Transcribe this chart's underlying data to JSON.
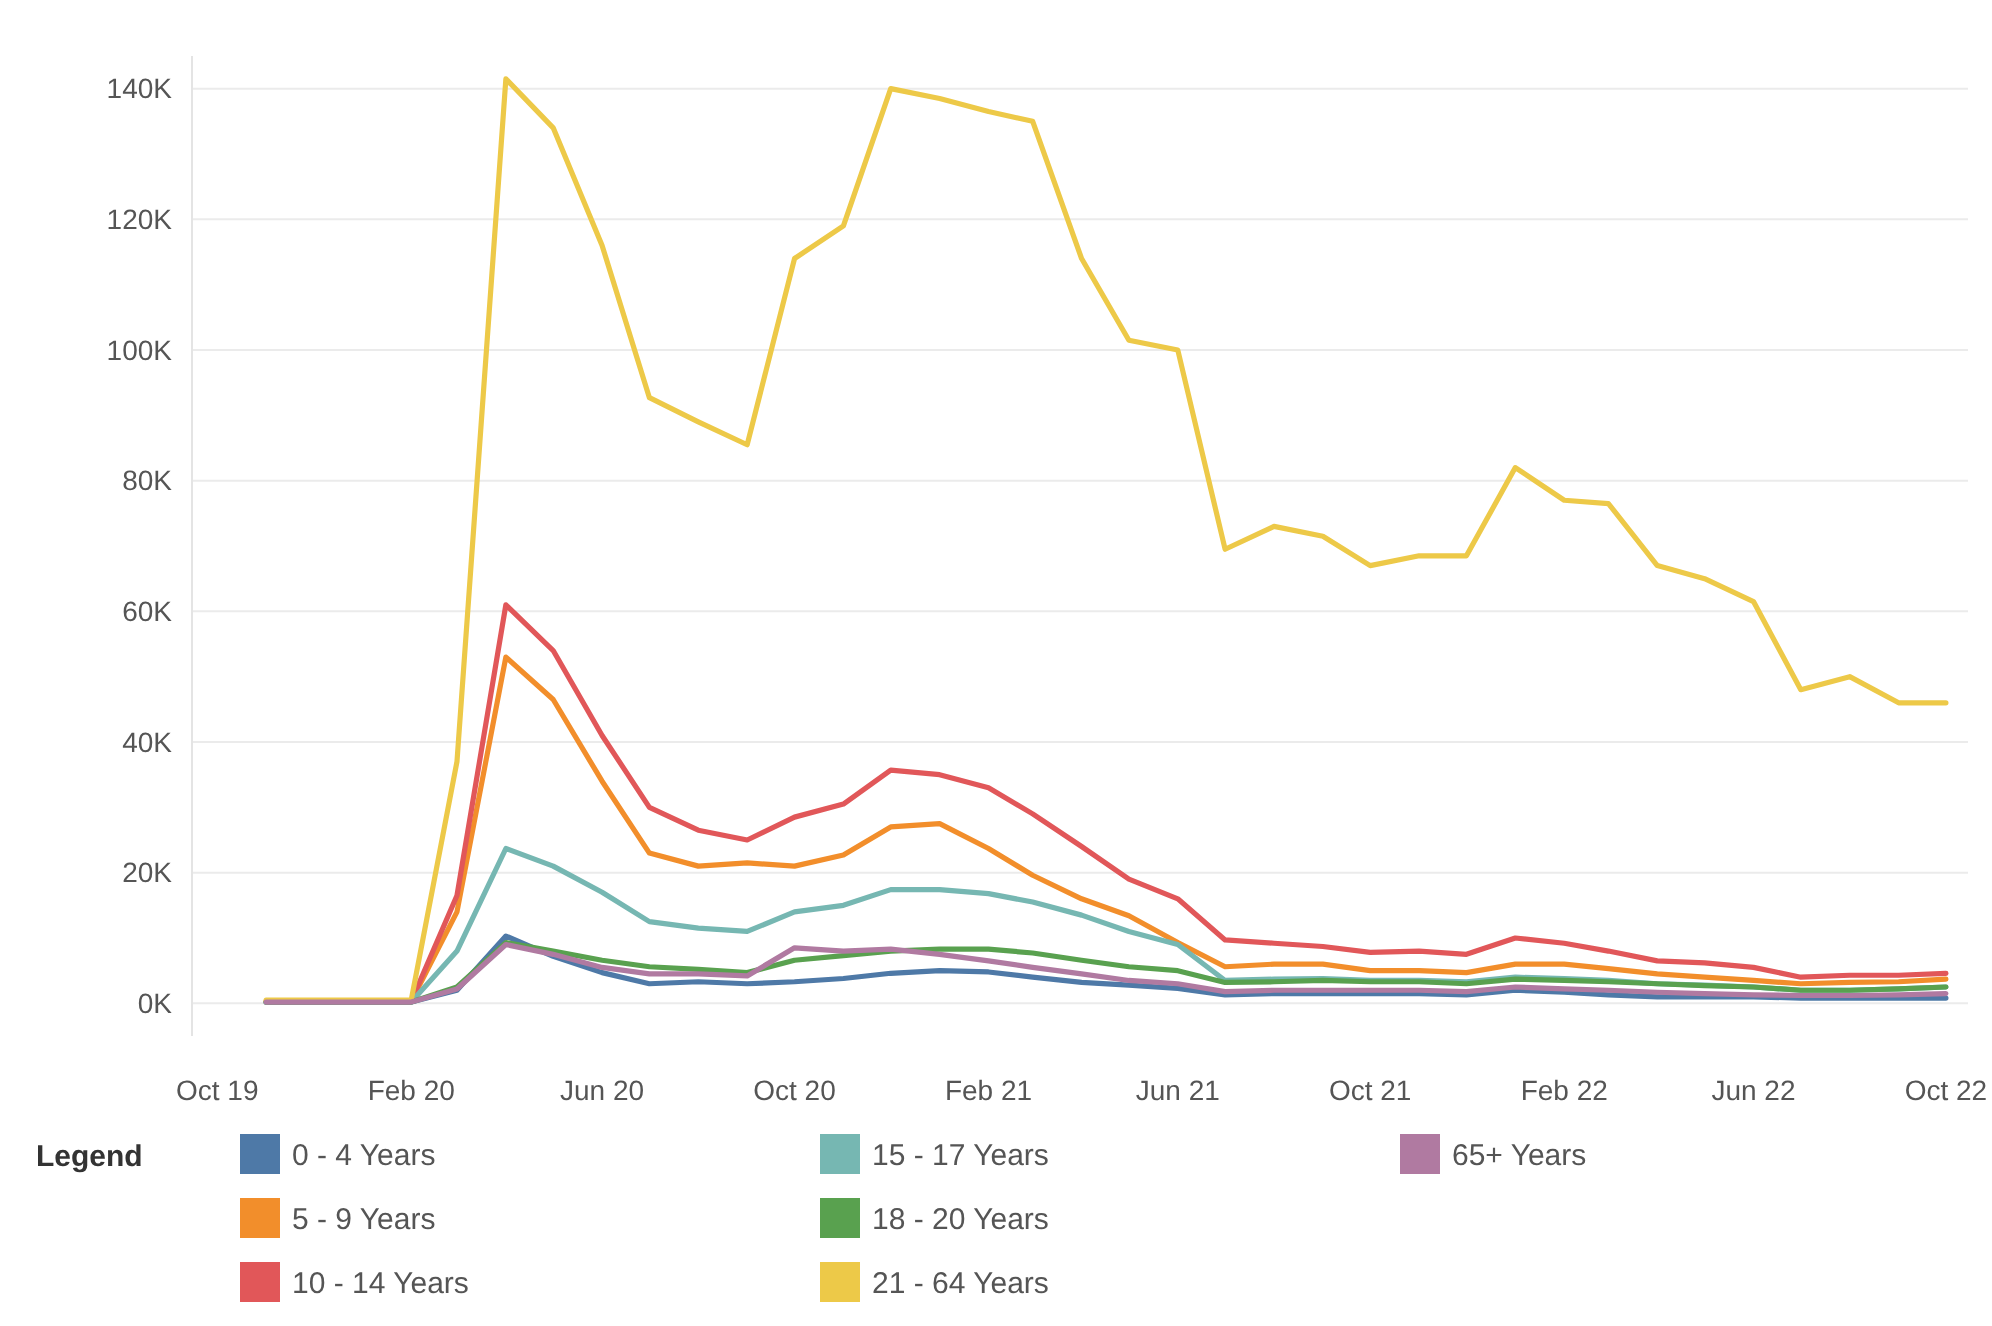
{
  "chart_data": {
    "type": "line",
    "legend_title": "Legend",
    "legend": "bottom",
    "grid": "y",
    "marker": "none",
    "line_style": "solid",
    "x": [
      "2019-11",
      "2019-12",
      "2020-01",
      "2020-02",
      "2020-03",
      "2020-04",
      "2020-05",
      "2020-06",
      "2020-07",
      "2020-08",
      "2020-09",
      "2020-10",
      "2020-11",
      "2020-12",
      "2021-01",
      "2021-02",
      "2021-03",
      "2021-04",
      "2021-05",
      "2021-06",
      "2021-07",
      "2021-08",
      "2021-09",
      "2021-10",
      "2021-11",
      "2021-12",
      "2022-01",
      "2022-02",
      "2022-03",
      "2022-04",
      "2022-05",
      "2022-06",
      "2022-07",
      "2022-08",
      "2022-09",
      "2022-10"
    ],
    "xlim": [
      "2019-09-15",
      "2022-10-15"
    ],
    "xticks": [
      {
        "value": "2019-10",
        "label": "Oct 19"
      },
      {
        "value": "2020-02",
        "label": "Feb 20"
      },
      {
        "value": "2020-06",
        "label": "Jun 20"
      },
      {
        "value": "2020-10",
        "label": "Oct 20"
      },
      {
        "value": "2021-02",
        "label": "Feb 21"
      },
      {
        "value": "2021-06",
        "label": "Jun 21"
      },
      {
        "value": "2021-10",
        "label": "Oct 21"
      },
      {
        "value": "2022-02",
        "label": "Feb 22"
      },
      {
        "value": "2022-06",
        "label": "Jun 22"
      },
      {
        "value": "2022-10",
        "label": "Oct 22"
      }
    ],
    "ylim": [
      -5000,
      145000
    ],
    "yticks": [
      {
        "value": 0,
        "label": "0K"
      },
      {
        "value": 20000,
        "label": "20K"
      },
      {
        "value": 40000,
        "label": "40K"
      },
      {
        "value": 60000,
        "label": "60K"
      },
      {
        "value": 80000,
        "label": "80K"
      },
      {
        "value": 100000,
        "label": "100K"
      },
      {
        "value": 120000,
        "label": "120K"
      },
      {
        "value": 140000,
        "label": "140K"
      }
    ],
    "series": [
      {
        "name": "0 - 4 Years",
        "color": "#4e79a7",
        "values": [
          200,
          200,
          200,
          200,
          2000,
          10300,
          7200,
          4700,
          3000,
          3300,
          3000,
          3300,
          3800,
          4600,
          5000,
          4800,
          4000,
          3200,
          2800,
          2300,
          1300,
          1500,
          1500,
          1500,
          1500,
          1300,
          2000,
          1700,
          1300,
          1000,
          1000,
          1000,
          800,
          800,
          800,
          800
        ]
      },
      {
        "name": "5 - 9 Years",
        "color": "#f28e2b",
        "values": [
          300,
          300,
          300,
          300,
          14000,
          53000,
          46500,
          34000,
          23000,
          21000,
          21500,
          21000,
          22700,
          27000,
          27500,
          23700,
          19600,
          16000,
          13400,
          9300,
          5600,
          6000,
          6000,
          5000,
          5000,
          4700,
          6000,
          6000,
          5300,
          4500,
          4000,
          3500,
          3000,
          3200,
          3300,
          3700
        ]
      },
      {
        "name": "10 - 14 Years",
        "color": "#e15759",
        "values": [
          null,
          null,
          300,
          300,
          16500,
          61000,
          54000,
          41000,
          30000,
          26500,
          25000,
          28500,
          30500,
          35700,
          35000,
          33000,
          29000,
          24000,
          19000,
          16000,
          9700,
          9200,
          8700,
          7800,
          8000,
          7500,
          10000,
          9200,
          8000,
          6500,
          6200,
          5500,
          4000,
          4300,
          4300,
          4600
        ]
      },
      {
        "name": "15 - 17 Years",
        "color": "#76b7b2",
        "values": [
          200,
          200,
          200,
          200,
          8000,
          23700,
          21000,
          17000,
          12500,
          11500,
          11000,
          14000,
          15000,
          17400,
          17400,
          16800,
          15500,
          13500,
          11000,
          9000,
          3500,
          3700,
          3800,
          3500,
          3500,
          3300,
          4000,
          3800,
          3500,
          3000,
          2800,
          2500,
          2000,
          2000,
          2200,
          2500
        ]
      },
      {
        "name": "18 - 20 Years",
        "color": "#59a14f",
        "values": [
          200,
          200,
          200,
          200,
          2500,
          9300,
          8000,
          6600,
          5600,
          5200,
          4700,
          6600,
          7300,
          8000,
          8300,
          8300,
          7700,
          6600,
          5600,
          5000,
          3200,
          3300,
          3500,
          3300,
          3300,
          3000,
          3700,
          3500,
          3300,
          3000,
          2700,
          2500,
          2000,
          2000,
          2200,
          2500
        ]
      },
      {
        "name": "21 - 64 Years",
        "color": "#edc948",
        "values": [
          500,
          500,
          500,
          500,
          37000,
          141500,
          134000,
          116000,
          92700,
          89000,
          85500,
          114000,
          119000,
          140000,
          138500,
          136500,
          135000,
          114000,
          101500,
          100000,
          69500,
          73000,
          71500,
          67000,
          68500,
          68500,
          82000,
          77000,
          76500,
          67000,
          65000,
          61500,
          48000,
          50000,
          46000,
          46000
        ]
      },
      {
        "name": "65+ Years",
        "color": "#b07aa1",
        "values": [
          200,
          200,
          200,
          200,
          2200,
          9000,
          7500,
          5500,
          4500,
          4500,
          4200,
          8500,
          8000,
          8300,
          7500,
          6500,
          5500,
          4500,
          3500,
          3000,
          1800,
          2000,
          2000,
          2000,
          2000,
          1800,
          2500,
          2200,
          2000,
          1700,
          1500,
          1300,
          1200,
          1200,
          1300,
          1500
        ]
      }
    ]
  }
}
